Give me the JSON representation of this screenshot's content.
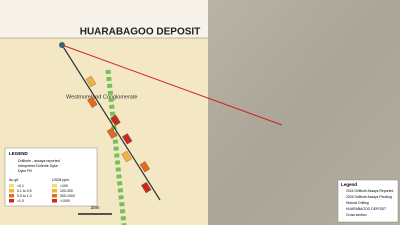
{
  "left_panel": {
    "title": "HUARABAGOO DEPOSIT",
    "formation": "Westmoreland Conglomerate",
    "scale": "20m",
    "legend": {
      "title": "LEGEND",
      "items": [
        "Drillhole - assays reported",
        "Interpreted Dolerite Dyke",
        "Dyke Fill"
      ],
      "au_title": "Au g/t",
      "au_classes": [
        "<0.1",
        "0.1 to 0.5",
        "0.5 to 1.0",
        ">1.0"
      ],
      "u_title": "U3O8 ppm",
      "u_classes": [
        "<100",
        "100-300",
        "300-1000",
        ">1000"
      ]
    }
  },
  "right_panel": {
    "legend": {
      "title": "Legend",
      "items": [
        "2024 Drillhole Assays Reported",
        "2024 Drillhole Assays Pending",
        "Historic Drilling",
        "HUARABAGOO DEPOSIT",
        "Cross section"
      ]
    }
  }
}
